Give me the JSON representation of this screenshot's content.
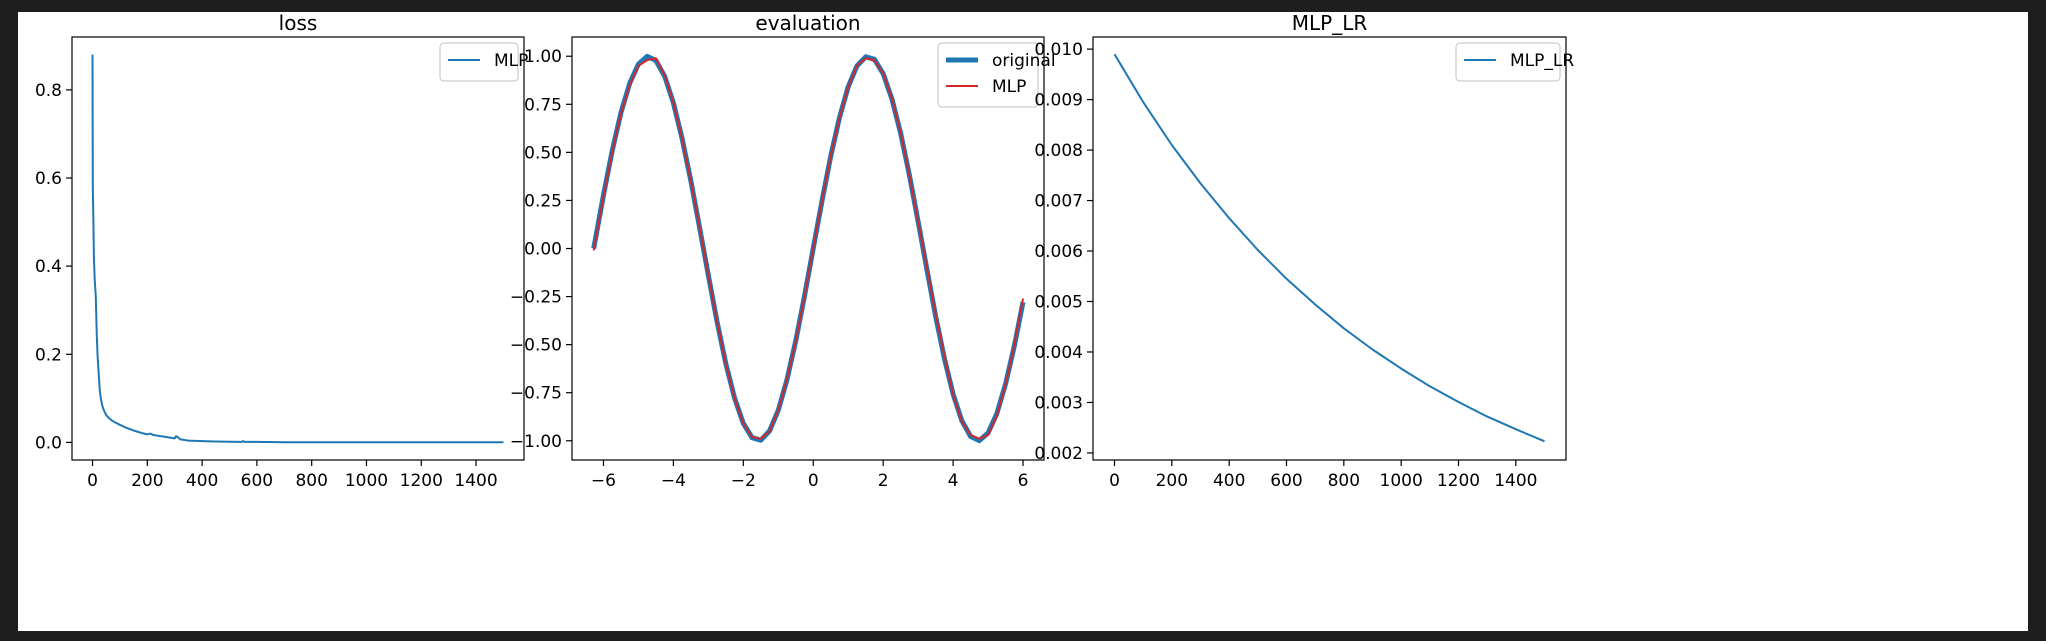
{
  "figure": {
    "background": "#ffffff",
    "window_background": "#1e1e1e"
  },
  "chart_data": [
    {
      "type": "line",
      "title": "loss",
      "xlim": [
        -75,
        1575
      ],
      "ylim": [
        -0.04,
        0.92
      ],
      "xticks": [
        0,
        200,
        400,
        600,
        800,
        1000,
        1200,
        1400
      ],
      "yticks": [
        0.0,
        0.2,
        0.4,
        0.6,
        0.8
      ],
      "ytick_labels": [
        "0.0",
        "0.2",
        "0.4",
        "0.6",
        "0.8"
      ],
      "grid": false,
      "legend": {
        "placement": "top-right"
      },
      "series": [
        {
          "name": "MLP",
          "color": "#1f77b4",
          "x": [
            0,
            1,
            3,
            5,
            8,
            12,
            15,
            18,
            22,
            26,
            30,
            35,
            40,
            45,
            50,
            60,
            70,
            80,
            100,
            120,
            150,
            180,
            200,
            210,
            215,
            220,
            240,
            260,
            280,
            300,
            305,
            310,
            315,
            320,
            330,
            340,
            350,
            400,
            450,
            500,
            545,
            550,
            555,
            600,
            700,
            800,
            1000,
            1200,
            1400,
            1500
          ],
          "y": [
            0.88,
            0.58,
            0.5,
            0.42,
            0.37,
            0.33,
            0.25,
            0.2,
            0.16,
            0.12,
            0.1,
            0.085,
            0.075,
            0.068,
            0.062,
            0.055,
            0.05,
            0.046,
            0.04,
            0.034,
            0.027,
            0.021,
            0.018,
            0.02,
            0.019,
            0.017,
            0.015,
            0.013,
            0.011,
            0.009,
            0.014,
            0.012,
            0.01,
            0.007,
            0.006,
            0.005,
            0.004,
            0.003,
            0.002,
            0.0015,
            0.001,
            0.003,
            0.001,
            0.001,
            0.0005,
            0.0004,
            0.0003,
            0.0002,
            0.0001,
            0.0001
          ]
        }
      ]
    },
    {
      "type": "line",
      "title": "evaluation",
      "xlim": [
        -6.9,
        6.6
      ],
      "ylim": [
        -1.1,
        1.1
      ],
      "xticks": [
        -6,
        -4,
        -2,
        0,
        2,
        4,
        6
      ],
      "yticks": [
        1.0,
        0.75,
        0.5,
        0.25,
        0.0,
        -0.25,
        -0.5,
        -0.75,
        -1.0
      ],
      "ytick_labels": [
        "1.00",
        "0.75",
        "0.50",
        "0.25",
        "0.00",
        "−0.25",
        "−0.50",
        "−0.75",
        "−1.00"
      ],
      "xtick_labels": [
        "−6",
        "−4",
        "−2",
        "0",
        "2",
        "4",
        "6"
      ],
      "grid": false,
      "legend": {
        "placement": "top-right"
      },
      "series": [
        {
          "name": "original",
          "color": "#1f77b4",
          "x": [
            -6.28,
            -6.0,
            -5.75,
            -5.5,
            -5.25,
            -5.0,
            -4.75,
            -4.5,
            -4.25,
            -4.0,
            -3.75,
            -3.5,
            -3.25,
            -3.0,
            -2.75,
            -2.5,
            -2.25,
            -2.0,
            -1.75,
            -1.5,
            -1.25,
            -1.0,
            -0.75,
            -0.5,
            -0.25,
            0.0,
            0.25,
            0.5,
            0.75,
            1.0,
            1.25,
            1.5,
            1.75,
            2.0,
            2.25,
            2.5,
            2.75,
            3.0,
            3.25,
            3.5,
            3.75,
            4.0,
            4.25,
            4.5,
            4.75,
            5.0,
            5.25,
            5.5,
            5.75,
            6.0
          ],
          "y": [
            0.0,
            0.279,
            0.508,
            0.706,
            0.859,
            0.959,
            0.999,
            0.978,
            0.895,
            0.757,
            0.572,
            0.351,
            0.108,
            -0.141,
            -0.382,
            -0.598,
            -0.778,
            -0.909,
            -0.984,
            -0.997,
            -0.949,
            -0.841,
            -0.682,
            -0.479,
            -0.247,
            0.0,
            0.247,
            0.479,
            0.682,
            0.841,
            0.949,
            0.997,
            0.984,
            0.909,
            0.778,
            0.598,
            0.382,
            0.141,
            -0.108,
            -0.351,
            -0.572,
            -0.757,
            -0.895,
            -0.978,
            -0.999,
            -0.959,
            -0.859,
            -0.706,
            -0.508,
            -0.279
          ]
        },
        {
          "name": "MLP",
          "color": "#d62728",
          "x": [
            -6.28,
            -6.0,
            -5.75,
            -5.5,
            -5.25,
            -5.0,
            -4.75,
            -4.5,
            -4.25,
            -4.0,
            -3.75,
            -3.5,
            -3.25,
            -3.0,
            -2.75,
            -2.5,
            -2.25,
            -2.0,
            -1.75,
            -1.5,
            -1.25,
            -1.0,
            -0.75,
            -0.5,
            -0.25,
            0.0,
            0.25,
            0.5,
            0.75,
            1.0,
            1.25,
            1.5,
            1.75,
            2.0,
            2.25,
            2.5,
            2.75,
            3.0,
            3.25,
            3.5,
            3.75,
            4.0,
            4.25,
            4.5,
            4.75,
            5.0,
            5.25,
            5.5,
            5.75,
            6.0
          ],
          "y": [
            -0.01,
            0.27,
            0.5,
            0.7,
            0.85,
            0.95,
            0.98,
            0.99,
            0.9,
            0.76,
            0.57,
            0.35,
            0.11,
            -0.14,
            -0.38,
            -0.6,
            -0.78,
            -0.91,
            -0.98,
            -0.99,
            -0.95,
            -0.84,
            -0.68,
            -0.48,
            -0.25,
            0.0,
            0.25,
            0.48,
            0.68,
            0.84,
            0.95,
            0.99,
            0.98,
            0.91,
            0.78,
            0.6,
            0.38,
            0.14,
            -0.1,
            -0.34,
            -0.56,
            -0.76,
            -0.9,
            -0.97,
            -0.99,
            -0.97,
            -0.87,
            -0.71,
            -0.5,
            -0.26
          ]
        }
      ]
    },
    {
      "type": "line",
      "title": "MLP_LR",
      "xlim": [
        -75,
        1575
      ],
      "ylim": [
        0.00186,
        0.01024
      ],
      "xticks": [
        0,
        200,
        400,
        600,
        800,
        1000,
        1200,
        1400
      ],
      "yticks": [
        0.002,
        0.003,
        0.004,
        0.005,
        0.006,
        0.007,
        0.008,
        0.009,
        0.01
      ],
      "ytick_labels": [
        "0.002",
        "0.003",
        "0.004",
        "0.005",
        "0.006",
        "0.007",
        "0.008",
        "0.009",
        "0.010"
      ],
      "grid": false,
      "legend": {
        "placement": "top-right"
      },
      "series": [
        {
          "name": "MLP_LR",
          "color": "#1f77b4",
          "x": [
            0,
            100,
            200,
            300,
            400,
            500,
            600,
            700,
            800,
            900,
            1000,
            1100,
            1200,
            1300,
            1400,
            1500
          ],
          "y": [
            0.0099,
            0.00895,
            0.0081,
            0.00734,
            0.00665,
            0.00602,
            0.00545,
            0.00494,
            0.00447,
            0.00405,
            0.00367,
            0.00332,
            0.00301,
            0.00272,
            0.00247,
            0.00223
          ]
        }
      ]
    }
  ]
}
